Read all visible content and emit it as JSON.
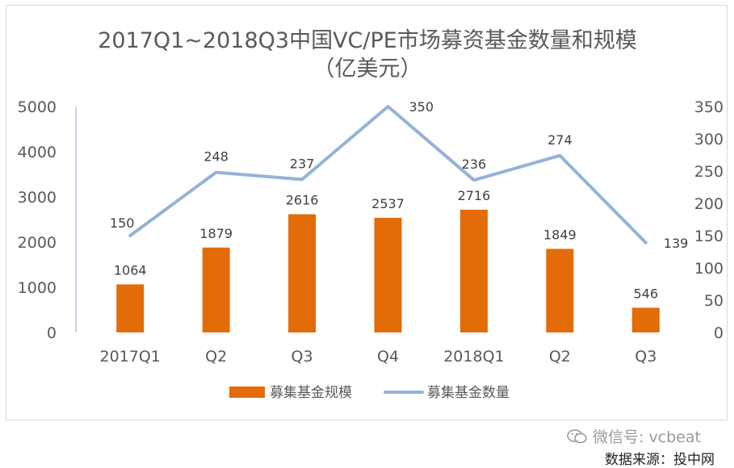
{
  "chart_data": {
    "type": "bar+line",
    "title_line1": "2017Q1~2018Q3中国VC/PE市场募资基金数量和规模",
    "title_line2": "（亿美元）",
    "categories": [
      "2017Q1",
      "Q2",
      "Q3",
      "Q4",
      "2018Q1",
      "Q2",
      "Q3"
    ],
    "series": [
      {
        "name": "募集基金规模",
        "type": "bar",
        "axis": "left",
        "color": "#E36C09",
        "values": [
          1064,
          1879,
          2616,
          2537,
          2716,
          1849,
          546
        ]
      },
      {
        "name": "募集基金数量",
        "type": "line",
        "axis": "right",
        "color": "#95B3D7",
        "values": [
          150,
          248,
          237,
          350,
          236,
          274,
          139
        ]
      }
    ],
    "y_left": {
      "min": 0,
      "max": 5000,
      "ticks": [
        "0",
        "1000",
        "2000",
        "3000",
        "4000",
        "5000"
      ]
    },
    "y_right": {
      "min": 0,
      "max": 350,
      "ticks": [
        "0",
        "50",
        "100",
        "150",
        "200",
        "250",
        "300",
        "350"
      ]
    },
    "legend_position": "bottom",
    "grid": false
  },
  "footer": {
    "watermark": "微信号: vcbeat",
    "source": "数据来源：投中网"
  },
  "colors": {
    "bar": "#E36C09",
    "line": "#95B3D7",
    "text": "#595959"
  }
}
